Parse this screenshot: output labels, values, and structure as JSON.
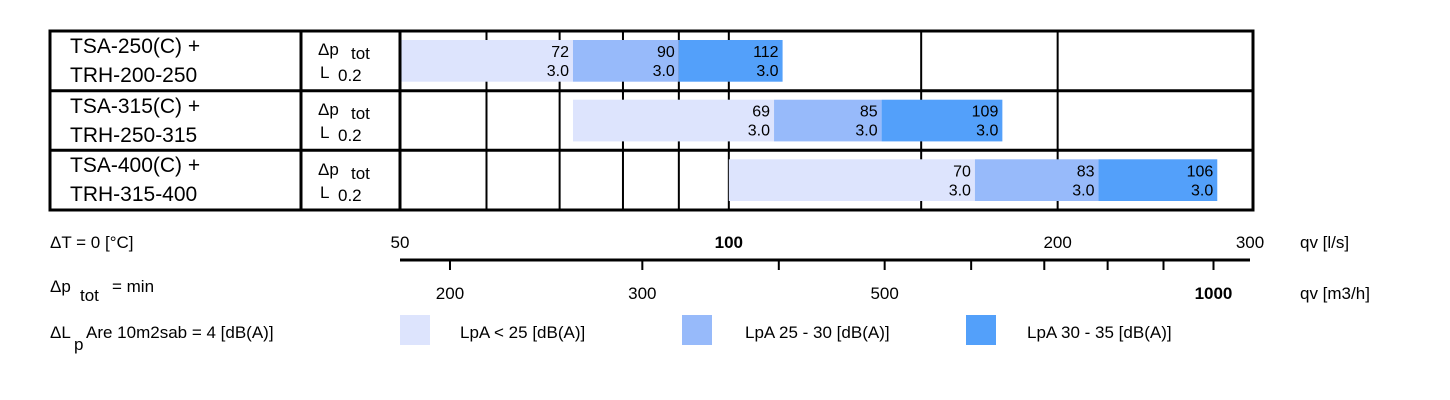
{
  "chart_data": {
    "type": "bar",
    "x_scale": "log",
    "x_range_ls": [
      50,
      300
    ],
    "grid": true,
    "rows": [
      {
        "model_line1": "TSA-250(C) +",
        "model_line2": "TRH-200-250",
        "dp_label": "Δp",
        "dp_sub": "tot",
        "l_label": "L",
        "l_sub": "0.2",
        "segments": [
          {
            "start": 50,
            "end": 72,
            "dp": "72",
            "l": "3.0",
            "level": 0
          },
          {
            "start": 72,
            "end": 90,
            "dp": "90",
            "l": "3.0",
            "level": 1
          },
          {
            "start": 90,
            "end": 112,
            "dp": "112",
            "l": "3.0",
            "level": 2
          }
        ]
      },
      {
        "model_line1": "TSA-315(C) +",
        "model_line2": "TRH-250-315",
        "dp_label": "Δp",
        "dp_sub": "tot",
        "l_label": "L",
        "l_sub": "0.2",
        "segments": [
          {
            "start": 72,
            "end": 110,
            "dp": "69",
            "l": "3.0",
            "level": 0
          },
          {
            "start": 110,
            "end": 138,
            "dp": "85",
            "l": "3.0",
            "level": 1
          },
          {
            "start": 138,
            "end": 178,
            "dp": "109",
            "l": "3.0",
            "level": 2
          }
        ]
      },
      {
        "model_line1": "TSA-400(C) +",
        "model_line2": "TRH-315-400",
        "dp_label": "Δp",
        "dp_sub": "tot",
        "l_label": "L",
        "l_sub": "0.2",
        "segments": [
          {
            "start": 100,
            "end": 168,
            "dp": "70",
            "l": "3.0",
            "level": 0
          },
          {
            "start": 168,
            "end": 218,
            "dp": "83",
            "l": "3.0",
            "level": 1
          },
          {
            "start": 218,
            "end": 280,
            "dp": "106",
            "l": "3.0",
            "level": 2
          }
        ]
      }
    ],
    "axis_ls": {
      "unit": "qv [l/s]",
      "ticks": [
        {
          "value": 50,
          "label": "50",
          "bold": false
        },
        {
          "value": 100,
          "label": "100",
          "bold": true
        },
        {
          "value": 200,
          "label": "200",
          "bold": false
        },
        {
          "value": 300,
          "label": "300",
          "bold": false
        }
      ]
    },
    "axis_m3h": {
      "unit": "qv [m3/h]",
      "major_ticks": [
        {
          "value": 200,
          "label": "200",
          "bold": false
        },
        {
          "value": 300,
          "label": "300",
          "bold": false
        },
        {
          "value": 500,
          "label": "500",
          "bold": false
        },
        {
          "value": 1000,
          "label": "1000",
          "bold": true
        }
      ],
      "minor_ticks": [
        400,
        600,
        700,
        800,
        900
      ]
    },
    "conditions": {
      "dt": "ΔT = 0 [°C]",
      "dp_main": "Δp",
      "dp_sub": "tot",
      "dp_rest": "= min",
      "dl_main": "ΔL",
      "dl_sub": "p",
      "dl_rest": "Are 10m2sab = 4 [dB(A)]"
    },
    "legend": [
      {
        "label": "LpA < 25 [dB(A)]",
        "color": "#dde4fd"
      },
      {
        "label": "LpA 25 - 30 [dB(A)]",
        "color": "#97bafa"
      },
      {
        "label": "LpA 30 - 35 [dB(A)]",
        "color": "#53a0fa"
      }
    ],
    "level_colors": [
      "#dde4fd",
      "#97bafa",
      "#53a0fa"
    ]
  }
}
